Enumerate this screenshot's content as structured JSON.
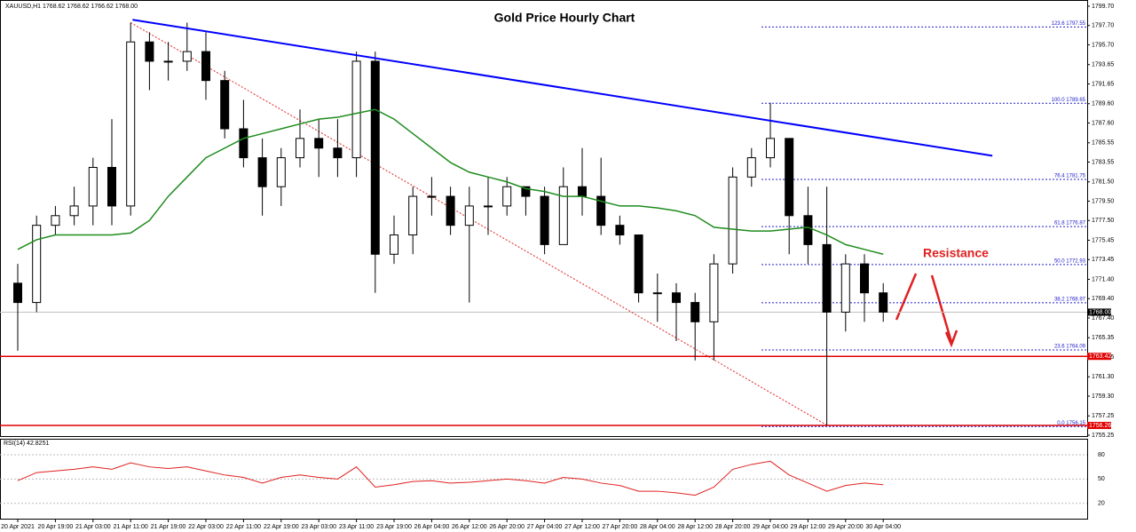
{
  "chart_data": [
    {
      "type": "candlestick",
      "title": "Gold Price Hourly Chart",
      "symbol_info": "XAUUSD,H1 1768.62 1768.62 1766.62 1768.00",
      "annotation": "Resistance",
      "categories": [
        "20 Apr 2021",
        null,
        "20 Apr 19:00",
        null,
        "21 Apr 03:00",
        null,
        "21 Apr 11:00",
        null,
        "21 Apr 19:00",
        null,
        "22 Apr 03:00",
        null,
        "22 Apr 11:00",
        null,
        "22 Apr 19:00",
        null,
        "23 Apr 03:00",
        null,
        "23 Apr 11:00",
        null,
        "23 Apr 19:00",
        null,
        "26 Apr 04:00",
        null,
        "26 Apr 12:00",
        null,
        "26 Apr 20:00",
        null,
        "27 Apr 04:00",
        null,
        "27 Apr 12:00",
        null,
        "27 Apr 20:00",
        null,
        "28 Apr 04:00",
        null,
        "28 Apr 12:00",
        null,
        "28 Apr 20:00",
        null,
        "29 Apr 04:00",
        null,
        "29 Apr 12:00",
        null,
        "29 Apr 20:00",
        null,
        "30 Apr 04:00"
      ],
      "open": [
        1771,
        1769,
        1777,
        1778,
        1779,
        1783,
        1779,
        1796,
        1794,
        1794,
        1795,
        1792,
        1787,
        1784,
        1781,
        1784,
        1786,
        1785,
        1784,
        1794,
        1774,
        1776,
        1780,
        1780,
        1777,
        1779,
        1779,
        1781,
        1780,
        1775,
        1781,
        1780,
        1777,
        1776,
        1770,
        1770,
        1769,
        1767,
        1773,
        1782,
        1784,
        1786,
        1778,
        1775,
        1768,
        1773,
        1770
      ],
      "high": [
        1773,
        1778,
        1779,
        1781,
        1784,
        1788,
        1798,
        1797,
        1796,
        1798,
        1797,
        1793,
        1790,
        1786,
        1785,
        1789,
        1788,
        1788,
        1795,
        1795,
        1778,
        1781,
        1782,
        1781,
        1781,
        1782,
        1782,
        1781,
        1781,
        1783,
        1785,
        1784,
        1778,
        1776,
        1772,
        1771,
        1770,
        1774,
        1783,
        1785,
        1789.7,
        1786,
        1781,
        1781,
        1774,
        1774,
        1771
      ],
      "low": [
        1764,
        1768,
        1776,
        1777,
        1777,
        1777,
        1778,
        1791,
        1792,
        1793,
        1790,
        1786,
        1783,
        1778,
        1779,
        1783,
        1782,
        1782,
        1782,
        1770,
        1773,
        1774,
        1778,
        1776,
        1769,
        1776,
        1778,
        1778,
        1774,
        1775,
        1778,
        1776,
        1775,
        1769,
        1767,
        1765,
        1763,
        1763,
        1772,
        1781,
        1783,
        1774,
        1773,
        1756.3,
        1766,
        1767,
        1767
      ],
      "close": [
        1769,
        1777,
        1778,
        1779,
        1783,
        1779,
        1796,
        1794,
        1794,
        1795,
        1792,
        1787,
        1784,
        1781,
        1784,
        1786,
        1785,
        1784,
        1794,
        1774,
        1776,
        1780,
        1780,
        1777,
        1779,
        1779,
        1781,
        1780,
        1775,
        1781,
        1780,
        1777,
        1776,
        1770,
        1770,
        1769,
        1767,
        1773,
        1782,
        1784,
        1786,
        1778,
        1775,
        1768,
        1773,
        1770,
        1768
      ],
      "ma": {
        "color": "#1e8c1e",
        "values": [
          1774.5,
          1775.5,
          1776,
          1776,
          1776,
          1776,
          1776.2,
          1777.5,
          1780,
          1782,
          1784,
          1785,
          1786,
          1786.5,
          1787,
          1787.5,
          1788,
          1788.2,
          1788.6,
          1789,
          1788,
          1786.5,
          1785,
          1783.5,
          1782.5,
          1782,
          1781.5,
          1780.8,
          1780.5,
          1780,
          1780,
          1779.5,
          1779,
          1779,
          1778.8,
          1778.5,
          1778,
          1776.8,
          1776.6,
          1776.4,
          1776.4,
          1776.6,
          1776.8,
          1776,
          1775,
          1774.5,
          1774
        ]
      },
      "trendline": {
        "color": "#0000ff",
        "start": [
          6.1,
          1798.3
        ],
        "end": [
          51.8,
          1784.2
        ]
      },
      "fib_levels": [
        {
          "value": 1797.55,
          "label": "123.6 1797.55"
        },
        {
          "value": 1789.65,
          "label": "100.0 1789.65"
        },
        {
          "value": 1781.75,
          "label": "76.4 1781.75"
        },
        {
          "value": 1776.87,
          "label": "61.8 1776.87"
        },
        {
          "value": 1772.93,
          "label": "50.0 1772.93"
        },
        {
          "value": 1768.97,
          "label": "38.2 1768.97"
        },
        {
          "value": 1764.09,
          "label": "23.6 1764.09"
        },
        {
          "value": 1756.15,
          "label": "0.0 1756.15"
        }
      ],
      "fib_color": "#2222cc",
      "price_lines": [
        {
          "value": 1763.42,
          "color": "#e00000"
        },
        {
          "value": 1756.26,
          "color": "#e00000"
        }
      ],
      "current_price": {
        "value": 1768,
        "label": "1768.00"
      },
      "ylim": [
        1755.25,
        1799.7
      ],
      "yticks": [
        {
          "value": 1799.7,
          "label": "1799.70"
        },
        {
          "value": 1797.7,
          "label": "1797.70"
        },
        {
          "value": 1795.7,
          "label": "1795.70"
        },
        {
          "value": 1793.65,
          "label": "1793.65"
        },
        {
          "value": 1791.65,
          "label": "1791.65"
        },
        {
          "value": 1789.6,
          "label": "1789.60"
        },
        {
          "value": 1787.6,
          "label": "1787.60"
        },
        {
          "value": 1785.55,
          "label": "1785.55"
        },
        {
          "value": 1783.55,
          "label": "1783.55"
        },
        {
          "value": 1781.5,
          "label": "1781.50"
        },
        {
          "value": 1779.5,
          "label": "1779.50"
        },
        {
          "value": 1777.5,
          "label": "1777.50"
        },
        {
          "value": 1775.45,
          "label": "1775.45"
        },
        {
          "value": 1773.45,
          "label": "1773.45"
        },
        {
          "value": 1771.4,
          "label": "1771.40"
        },
        {
          "value": 1769.4,
          "label": "1769.40"
        },
        {
          "value": 1767.4,
          "label": "1767.40"
        },
        {
          "value": 1765.35,
          "label": "1765.35"
        },
        {
          "value": 1763.35,
          "label": "1763.35"
        },
        {
          "value": 1761.3,
          "label": "1761.30"
        },
        {
          "value": 1759.3,
          "label": "1759.30"
        },
        {
          "value": 1757.25,
          "label": "1757.25"
        },
        {
          "value": 1755.25,
          "label": "1755.25"
        }
      ]
    },
    {
      "type": "line",
      "label": "RSI(14) 42.8251",
      "color": "#e02020",
      "values": [
        48,
        58,
        60,
        62,
        65,
        62,
        70,
        65,
        63,
        65,
        60,
        55,
        52,
        45,
        52,
        55,
        52,
        50,
        65,
        40,
        43,
        47,
        48,
        45,
        46,
        48,
        50,
        48,
        45,
        52,
        50,
        45,
        42,
        35,
        35,
        33,
        30,
        40,
        62,
        68,
        72,
        55,
        45,
        35,
        42,
        45,
        43
      ],
      "ylim": [
        0,
        100
      ],
      "yticks": [
        80,
        50,
        20
      ]
    }
  ]
}
